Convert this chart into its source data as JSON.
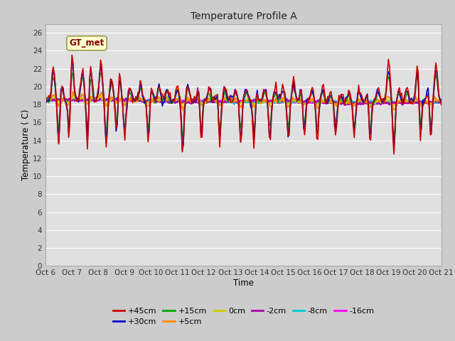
{
  "title": "Temperature Profile A",
  "xlabel": "Time",
  "ylabel": "Temperature ( C)",
  "ylim": [
    0,
    27
  ],
  "yticks": [
    0,
    2,
    4,
    6,
    8,
    10,
    12,
    14,
    16,
    18,
    20,
    22,
    24,
    26
  ],
  "x_labels": [
    "Oct 6",
    "Oct 7",
    "Oct 8",
    "Oct 9",
    "Oct 10",
    "Oct 11",
    "Oct 12",
    "Oct 13",
    "Oct 14",
    "Oct 15",
    "Oct 16",
    "Oct 17",
    "Oct 18",
    "Oct 19",
    "Oct 20",
    "Oct 21"
  ],
  "annotation_text": "GT_met",
  "series_colors": {
    "+45cm": "#cc0000",
    "+30cm": "#0000cc",
    "+15cm": "#00aa00",
    "+5cm": "#ff8800",
    "0cm": "#cccc00",
    "-2cm": "#aa00aa",
    "-8cm": "#00cccc",
    "-16cm": "#ff00ff"
  },
  "legend_order": [
    "+45cm",
    "+30cm",
    "+15cm",
    "+5cm",
    "0cm",
    "-2cm",
    "-8cm",
    "-16cm"
  ],
  "bg_color": "#cccccc",
  "plot_bg_color": "#e0e0e0",
  "grid_color": "#ffffff"
}
